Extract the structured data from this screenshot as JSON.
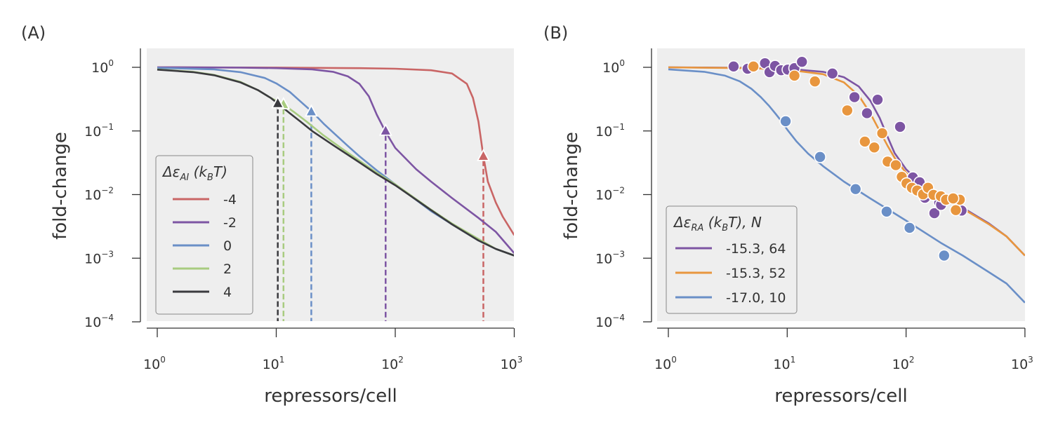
{
  "chart_data": [
    {
      "panel": "(A)",
      "type": "line",
      "xlabel": "repressors/cell",
      "ylabel": "fold-change",
      "xscale": "log",
      "yscale": "log",
      "xlim": [
        0.8,
        1000
      ],
      "ylim": [
        0.0001,
        2
      ],
      "xticks": [
        {
          "base": "10",
          "exp": "0"
        },
        {
          "base": "10",
          "exp": "1"
        },
        {
          "base": "10",
          "exp": "2"
        },
        {
          "base": "10",
          "exp": "3"
        }
      ],
      "yticks": [
        {
          "base": "10",
          "exp": "0"
        },
        {
          "base": "10",
          "exp": "−1"
        },
        {
          "base": "10",
          "exp": "−2"
        },
        {
          "base": "10",
          "exp": "−3"
        },
        {
          "base": "10",
          "exp": "−4"
        }
      ],
      "legend": {
        "title_main": "Δε",
        "title_sub": "AI",
        "title_rest": " (k",
        "title_sub2": "B",
        "title_end": "T)",
        "position": "lower-left"
      },
      "series": [
        {
          "name": "-4",
          "color": "#c96565",
          "x": [
            1,
            10,
            50,
            100,
            200,
            300,
            400,
            450,
            500,
            550,
            600,
            700,
            800,
            1000
          ],
          "y": [
            1.0,
            0.99,
            0.97,
            0.95,
            0.9,
            0.8,
            0.55,
            0.33,
            0.14,
            0.04,
            0.016,
            0.0075,
            0.0045,
            0.0023
          ],
          "marker": {
            "x": 550,
            "y": 0.04
          }
        },
        {
          "name": "-2",
          "color": "#7d55a3",
          "x": [
            1,
            5,
            10,
            20,
            30,
            40,
            50,
            60,
            70,
            80,
            90,
            100,
            150,
            200,
            300,
            500,
            700,
            1000
          ],
          "y": [
            1.0,
            0.99,
            0.97,
            0.93,
            0.85,
            0.72,
            0.55,
            0.35,
            0.18,
            0.11,
            0.075,
            0.054,
            0.025,
            0.016,
            0.0088,
            0.0043,
            0.0026,
            0.0012
          ],
          "marker": {
            "x": 83,
            "y": 0.1
          }
        },
        {
          "name": "0",
          "color": "#6a8fc7",
          "x": [
            1,
            3,
            5,
            8,
            10,
            13,
            16,
            20,
            25,
            30,
            40,
            50,
            70,
            100,
            200,
            300,
            500,
            700,
            1000
          ],
          "y": [
            0.98,
            0.93,
            0.84,
            0.68,
            0.56,
            0.41,
            0.29,
            0.2,
            0.13,
            0.095,
            0.058,
            0.04,
            0.024,
            0.0145,
            0.0055,
            0.0034,
            0.0019,
            0.0014,
            0.0011
          ],
          "marker": {
            "x": 19.7,
            "y": 0.2
          }
        },
        {
          "name": "2",
          "color": "#a8cc80",
          "x": [
            1,
            2,
            3,
            5,
            7,
            9,
            11.5,
            14,
            18,
            25,
            35,
            50,
            70,
            100,
            200,
            300,
            500,
            700,
            1000
          ],
          "y": [
            0.93,
            0.85,
            0.76,
            0.59,
            0.44,
            0.33,
            0.26,
            0.2,
            0.14,
            0.085,
            0.054,
            0.034,
            0.022,
            0.0145,
            0.0058,
            0.0035,
            0.002,
            0.0014,
            0.0011
          ],
          "marker": {
            "x": 11.5,
            "y": 0.26
          }
        },
        {
          "name": "4",
          "color": "#3a3a3e",
          "x": [
            1,
            2,
            3,
            5,
            7,
            9,
            10.3,
            13,
            16,
            20,
            30,
            50,
            70,
            100,
            200,
            300,
            500,
            700,
            1000
          ],
          "y": [
            0.92,
            0.84,
            0.75,
            0.58,
            0.44,
            0.33,
            0.27,
            0.19,
            0.14,
            0.1,
            0.06,
            0.032,
            0.021,
            0.014,
            0.0057,
            0.0034,
            0.0019,
            0.0014,
            0.0011
          ],
          "marker": {
            "x": 10.3,
            "y": 0.27
          }
        }
      ]
    },
    {
      "panel": "(B)",
      "type": "line+scatter",
      "xlabel": "repressors/cell",
      "ylabel": "fold-change",
      "xscale": "log",
      "yscale": "log",
      "xlim": [
        0.8,
        1000
      ],
      "ylim": [
        0.0001,
        2
      ],
      "xticks": [
        {
          "base": "10",
          "exp": "0"
        },
        {
          "base": "10",
          "exp": "1"
        },
        {
          "base": "10",
          "exp": "2"
        },
        {
          "base": "10",
          "exp": "3"
        }
      ],
      "yticks": [
        {
          "base": "10",
          "exp": "0"
        },
        {
          "base": "10",
          "exp": "−1"
        },
        {
          "base": "10",
          "exp": "−2"
        },
        {
          "base": "10",
          "exp": "−3"
        },
        {
          "base": "10",
          "exp": "−4"
        }
      ],
      "legend": {
        "title_main": "Δε",
        "title_sub": "RA",
        "title_rest": " (k",
        "title_sub2": "B",
        "title_end": "T),  N",
        "position": "lower-left"
      },
      "series": [
        {
          "name": "-15.3, 64",
          "color": "#7d55a3",
          "x": [
            1,
            5,
            10,
            20,
            30,
            40,
            50,
            60,
            70,
            80,
            100,
            120,
            150,
            200,
            300,
            500,
            700,
            1000
          ],
          "y": [
            1.0,
            0.98,
            0.95,
            0.85,
            0.7,
            0.5,
            0.3,
            0.16,
            0.08,
            0.045,
            0.025,
            0.018,
            0.013,
            0.0095,
            0.0062,
            0.0035,
            0.0022,
            0.0011
          ],
          "points_x": [
            3.54,
            4.64,
            6.5,
            7.1,
            7.9,
            8.9,
            10.1,
            11.5,
            13.3,
            24,
            36.8,
            57.6,
            46.9,
            89,
            114,
            130,
            144,
            173,
            190,
            293,
            197
          ],
          "points_y": [
            1.03,
            0.95,
            1.16,
            0.84,
            1.05,
            0.9,
            0.92,
            0.97,
            1.22,
            0.8,
            0.34,
            0.31,
            0.19,
            0.116,
            0.0186,
            0.0156,
            0.0089,
            0.0051,
            0.0075,
            0.0056,
            0.0069
          ]
        },
        {
          "name": "-15.3, 52",
          "color": "#e8963e",
          "x": [
            1,
            5,
            10,
            20,
            30,
            40,
            50,
            60,
            70,
            80,
            100,
            120,
            150,
            200,
            300,
            500,
            700,
            1000
          ],
          "y": [
            1.0,
            0.97,
            0.92,
            0.78,
            0.58,
            0.36,
            0.19,
            0.1,
            0.058,
            0.038,
            0.022,
            0.016,
            0.012,
            0.0088,
            0.006,
            0.0034,
            0.0022,
            0.0011
          ],
          "points_x": [
            5.2,
            11.5,
            17.1,
            32,
            63,
            45,
            54,
            70,
            82,
            92,
            101,
            112,
            124,
            139,
            153,
            170,
            196,
            217,
            262,
            283,
            249
          ],
          "points_y": [
            1.03,
            0.74,
            0.6,
            0.21,
            0.092,
            0.068,
            0.055,
            0.033,
            0.029,
            0.019,
            0.015,
            0.0128,
            0.0116,
            0.0101,
            0.0128,
            0.0099,
            0.0094,
            0.0083,
            0.0057,
            0.0083,
            0.0087
          ]
        },
        {
          "name": "-17.0, 10",
          "color": "#6a8fc7",
          "x": [
            1,
            2,
            3,
            4,
            5,
            6,
            7,
            8,
            9,
            10,
            12,
            15,
            20,
            30,
            50,
            100,
            200,
            300,
            500,
            700,
            1000
          ],
          "y": [
            0.93,
            0.85,
            0.74,
            0.6,
            0.46,
            0.34,
            0.25,
            0.185,
            0.14,
            0.105,
            0.068,
            0.044,
            0.028,
            0.016,
            0.0087,
            0.0039,
            0.0017,
            0.0011,
            0.0006,
            0.0004,
            0.0002
          ],
          "points_x": [
            9.7,
            18.9,
            37.6,
            68.6,
            107,
            209
          ],
          "points_y": [
            0.142,
            0.039,
            0.0122,
            0.0054,
            0.003,
            0.0011
          ]
        }
      ]
    }
  ]
}
